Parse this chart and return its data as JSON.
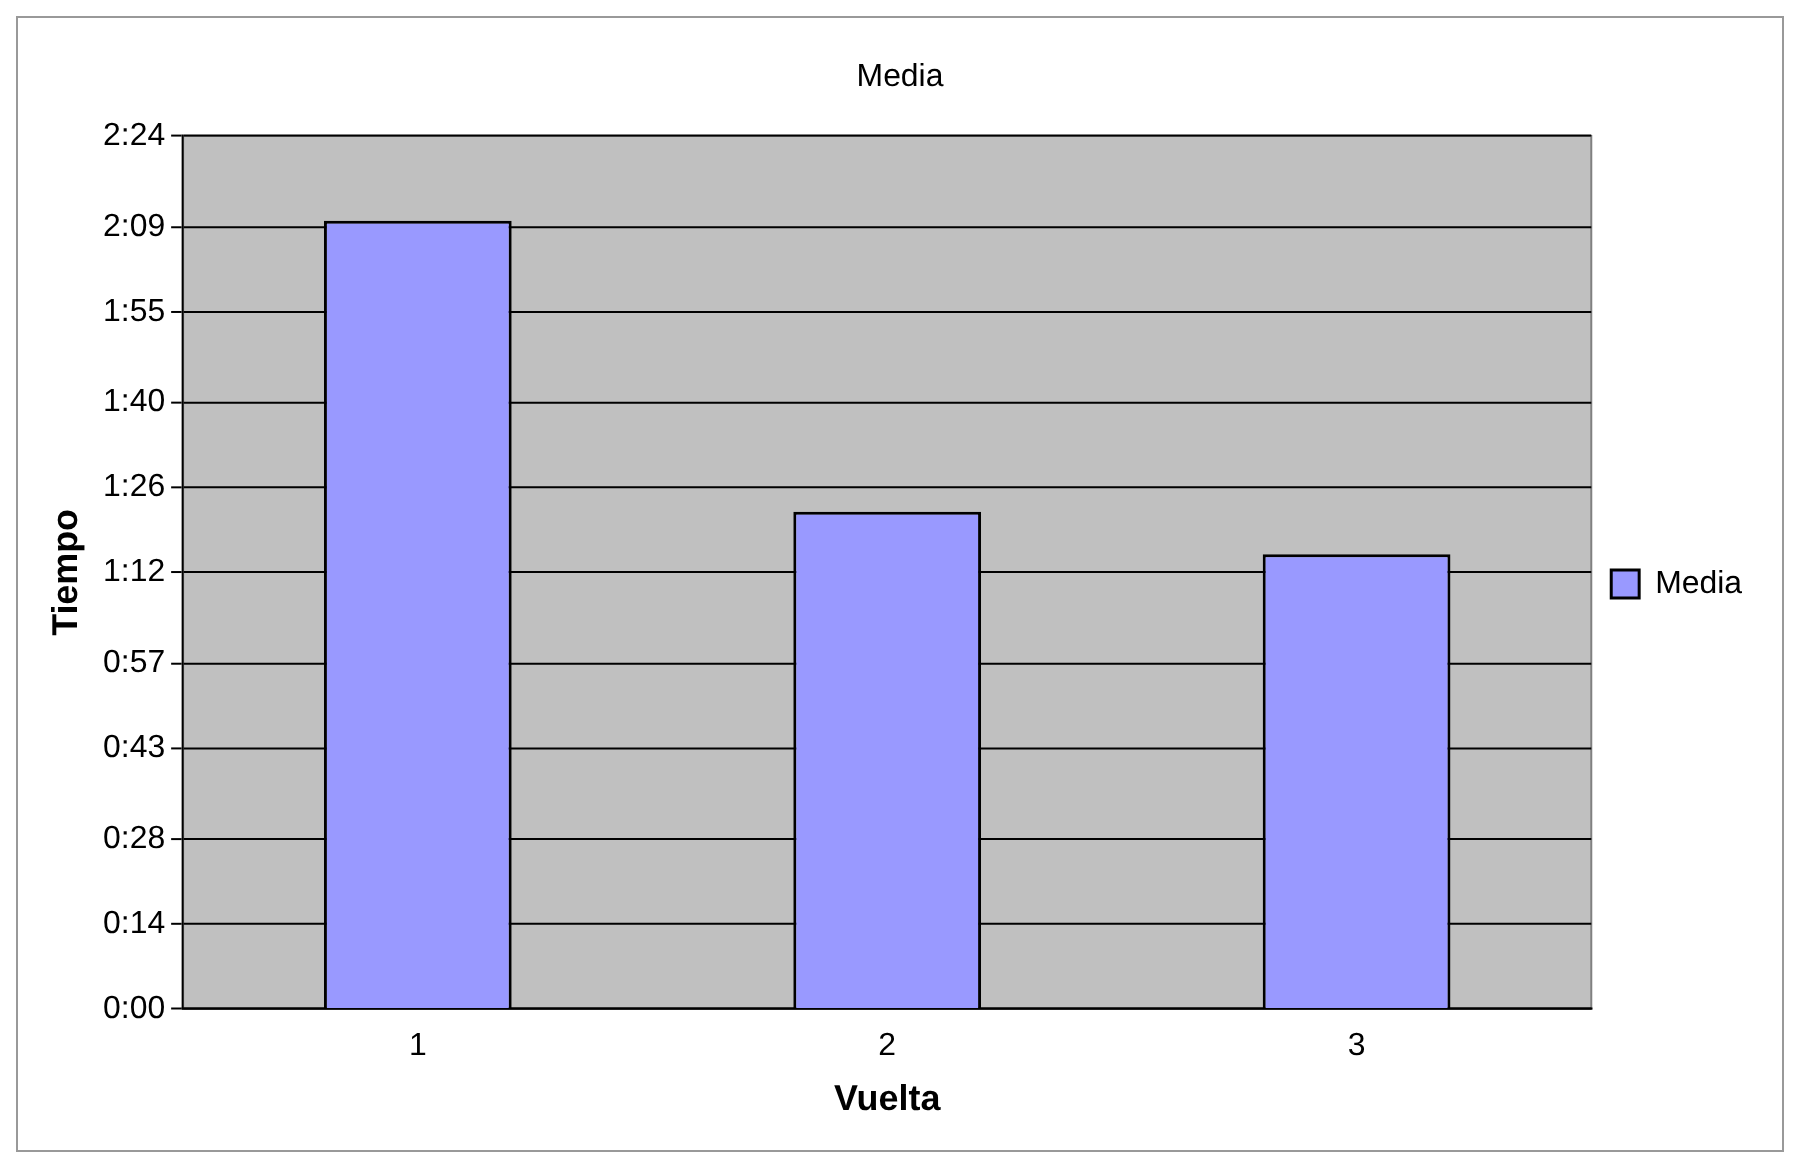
{
  "chart_data": {
    "type": "bar",
    "title": "Media",
    "xlabel": "Vuelta",
    "ylabel": "Tiempo",
    "categories": [
      "1",
      "2",
      "3"
    ],
    "series": [
      {
        "name": "Media",
        "color": "#9999ff",
        "values": [
          130,
          82,
          75
        ]
      }
    ],
    "ylim": [
      0,
      144
    ],
    "yticks": [
      {
        "value": 0,
        "label": "0:00"
      },
      {
        "value": 14,
        "label": "0:14"
      },
      {
        "value": 28,
        "label": "0:28"
      },
      {
        "value": 43,
        "label": "0:43"
      },
      {
        "value": 57,
        "label": "0:57"
      },
      {
        "value": 72,
        "label": "1:12"
      },
      {
        "value": 86,
        "label": "1:26"
      },
      {
        "value": 100,
        "label": "1:40"
      },
      {
        "value": 115,
        "label": "1:55"
      },
      {
        "value": 129,
        "label": "2:09"
      },
      {
        "value": 144,
        "label": "2:24"
      }
    ],
    "grid": "y",
    "legend": "right"
  }
}
